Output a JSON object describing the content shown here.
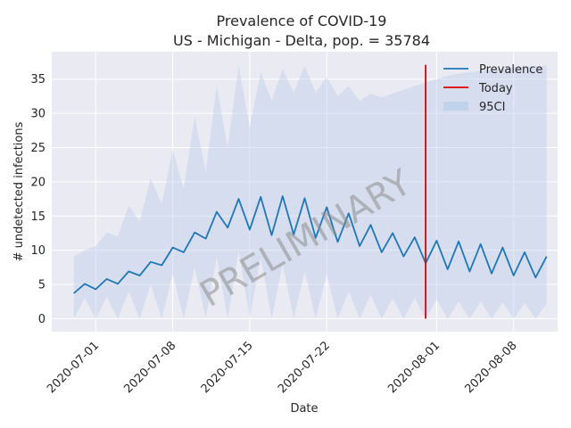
{
  "chart_data": {
    "type": "line",
    "title": "Prevalence of COVID-19",
    "subtitle": "US - Michigan - Delta, pop. = 35784",
    "xlabel": "Date",
    "ylabel": "# undetected infections",
    "watermark": "PRELIMINARY",
    "xlim": [
      "2020-06-27",
      "2020-08-12"
    ],
    "ylim": [
      -1.9,
      39
    ],
    "x_ticks": [
      "2020-07-01",
      "2020-07-08",
      "2020-07-15",
      "2020-07-22",
      "2020-08-01",
      "2020-08-08"
    ],
    "y_ticks": [
      0,
      5,
      10,
      15,
      20,
      25,
      30,
      35
    ],
    "grid": true,
    "legend_position": "top-right",
    "legend": [
      {
        "label": "Prevalence",
        "kind": "line",
        "color": "#1f77b4"
      },
      {
        "label": "Today",
        "kind": "line",
        "color": "#e00000"
      },
      {
        "label": "95CI",
        "kind": "patch",
        "color": "#aec7e8"
      }
    ],
    "today": "2020-07-31",
    "series": [
      {
        "name": "Prevalence",
        "color": "#1f77b4",
        "points": [
          [
            "2020-06-29",
            3.7
          ],
          [
            "2020-06-30",
            5.1
          ],
          [
            "2020-07-01",
            4.3
          ],
          [
            "2020-07-02",
            5.8
          ],
          [
            "2020-07-03",
            5.1
          ],
          [
            "2020-07-04",
            6.9
          ],
          [
            "2020-07-05",
            6.3
          ],
          [
            "2020-07-06",
            8.3
          ],
          [
            "2020-07-07",
            7.8
          ],
          [
            "2020-07-08",
            10.4
          ],
          [
            "2020-07-09",
            9.7
          ],
          [
            "2020-07-10",
            12.6
          ],
          [
            "2020-07-11",
            11.7
          ],
          [
            "2020-07-12",
            15.6
          ],
          [
            "2020-07-13",
            13.3
          ],
          [
            "2020-07-14",
            17.5
          ],
          [
            "2020-07-15",
            13.0
          ],
          [
            "2020-07-16",
            17.8
          ],
          [
            "2020-07-17",
            12.2
          ],
          [
            "2020-07-18",
            17.9
          ],
          [
            "2020-07-19",
            12.3
          ],
          [
            "2020-07-20",
            17.6
          ],
          [
            "2020-07-21",
            11.8
          ],
          [
            "2020-07-22",
            16.3
          ],
          [
            "2020-07-23",
            11.2
          ],
          [
            "2020-07-24",
            15.4
          ],
          [
            "2020-07-25",
            10.6
          ],
          [
            "2020-07-26",
            13.7
          ],
          [
            "2020-07-27",
            9.7
          ],
          [
            "2020-07-28",
            12.5
          ],
          [
            "2020-07-29",
            9.1
          ],
          [
            "2020-07-30",
            11.9
          ],
          [
            "2020-07-31",
            8.1
          ],
          [
            "2020-08-01",
            11.4
          ],
          [
            "2020-08-02",
            7.2
          ],
          [
            "2020-08-03",
            11.3
          ],
          [
            "2020-08-04",
            6.9
          ],
          [
            "2020-08-05",
            10.9
          ],
          [
            "2020-08-06",
            6.6
          ],
          [
            "2020-08-07",
            10.4
          ],
          [
            "2020-08-08",
            6.3
          ],
          [
            "2020-08-09",
            9.7
          ],
          [
            "2020-08-10",
            6.0
          ],
          [
            "2020-08-11",
            9.1
          ]
        ]
      }
    ],
    "ci_95": {
      "name": "95CI",
      "color": "#aec7e8",
      "upper": [
        [
          "2020-06-29",
          9.1
        ],
        [
          "2020-06-30",
          10.0
        ],
        [
          "2020-07-01",
          10.6
        ],
        [
          "2020-07-02",
          12.6
        ],
        [
          "2020-07-03",
          12.0
        ],
        [
          "2020-07-04",
          16.5
        ],
        [
          "2020-07-05",
          14.2
        ],
        [
          "2020-07-06",
          20.5
        ],
        [
          "2020-07-07",
          16.7
        ],
        [
          "2020-07-08",
          24.7
        ],
        [
          "2020-07-09",
          19.0
        ],
        [
          "2020-07-10",
          29.5
        ],
        [
          "2020-07-11",
          21.5
        ],
        [
          "2020-07-12",
          34.0
        ],
        [
          "2020-07-13",
          25.0
        ],
        [
          "2020-07-14",
          37.0
        ],
        [
          "2020-07-15",
          28.0
        ],
        [
          "2020-07-16",
          36.0
        ],
        [
          "2020-07-17",
          31.8
        ],
        [
          "2020-07-18",
          36.5
        ],
        [
          "2020-07-19",
          33.0
        ],
        [
          "2020-07-20",
          37.0
        ],
        [
          "2020-07-21",
          33.0
        ],
        [
          "2020-07-22",
          35.3
        ],
        [
          "2020-07-23",
          32.5
        ],
        [
          "2020-07-24",
          34.0
        ],
        [
          "2020-07-25",
          31.8
        ],
        [
          "2020-07-26",
          32.9
        ],
        [
          "2020-07-27",
          32.3
        ],
        [
          "2020-07-28",
          32.9
        ],
        [
          "2020-07-29",
          33.4
        ],
        [
          "2020-07-30",
          34.0
        ],
        [
          "2020-07-31",
          34.5
        ],
        [
          "2020-08-01",
          35.0
        ],
        [
          "2020-08-02",
          35.5
        ],
        [
          "2020-08-03",
          35.8
        ],
        [
          "2020-08-04",
          36.0
        ],
        [
          "2020-08-05",
          36.2
        ],
        [
          "2020-08-06",
          36.4
        ],
        [
          "2020-08-07",
          36.6
        ],
        [
          "2020-08-08",
          36.7
        ],
        [
          "2020-08-09",
          36.8
        ],
        [
          "2020-08-10",
          36.9
        ],
        [
          "2020-08-11",
          37.0
        ]
      ],
      "lower": [
        [
          "2020-06-29",
          0.0
        ],
        [
          "2020-06-30",
          3.0
        ],
        [
          "2020-07-01",
          0.0
        ],
        [
          "2020-07-02",
          3.2
        ],
        [
          "2020-07-03",
          0.0
        ],
        [
          "2020-07-04",
          4.0
        ],
        [
          "2020-07-05",
          0.0
        ],
        [
          "2020-07-06",
          5.0
        ],
        [
          "2020-07-07",
          0.0
        ],
        [
          "2020-07-08",
          6.5
        ],
        [
          "2020-07-09",
          0.0
        ],
        [
          "2020-07-10",
          7.5
        ],
        [
          "2020-07-11",
          0.0
        ],
        [
          "2020-07-12",
          9.0
        ],
        [
          "2020-07-13",
          0.0
        ],
        [
          "2020-07-14",
          10.0
        ],
        [
          "2020-07-15",
          0.0
        ],
        [
          "2020-07-16",
          9.0
        ],
        [
          "2020-07-17",
          0.0
        ],
        [
          "2020-07-18",
          8.0
        ],
        [
          "2020-07-19",
          0.0
        ],
        [
          "2020-07-20",
          7.0
        ],
        [
          "2020-07-21",
          0.0
        ],
        [
          "2020-07-22",
          6.5
        ],
        [
          "2020-07-23",
          0.0
        ],
        [
          "2020-07-24",
          4.0
        ],
        [
          "2020-07-25",
          0.0
        ],
        [
          "2020-07-26",
          3.5
        ],
        [
          "2020-07-27",
          0.0
        ],
        [
          "2020-07-28",
          3.0
        ],
        [
          "2020-07-29",
          0.0
        ],
        [
          "2020-07-30",
          3.0
        ],
        [
          "2020-07-31",
          0.0
        ],
        [
          "2020-08-01",
          2.8
        ],
        [
          "2020-08-02",
          0.0
        ],
        [
          "2020-08-03",
          2.5
        ],
        [
          "2020-08-04",
          0.0
        ],
        [
          "2020-08-05",
          2.5
        ],
        [
          "2020-08-06",
          0.0
        ],
        [
          "2020-08-07",
          2.4
        ],
        [
          "2020-08-08",
          0.0
        ],
        [
          "2020-08-09",
          2.3
        ],
        [
          "2020-08-10",
          0.0
        ],
        [
          "2020-08-11",
          2.2
        ]
      ]
    }
  }
}
